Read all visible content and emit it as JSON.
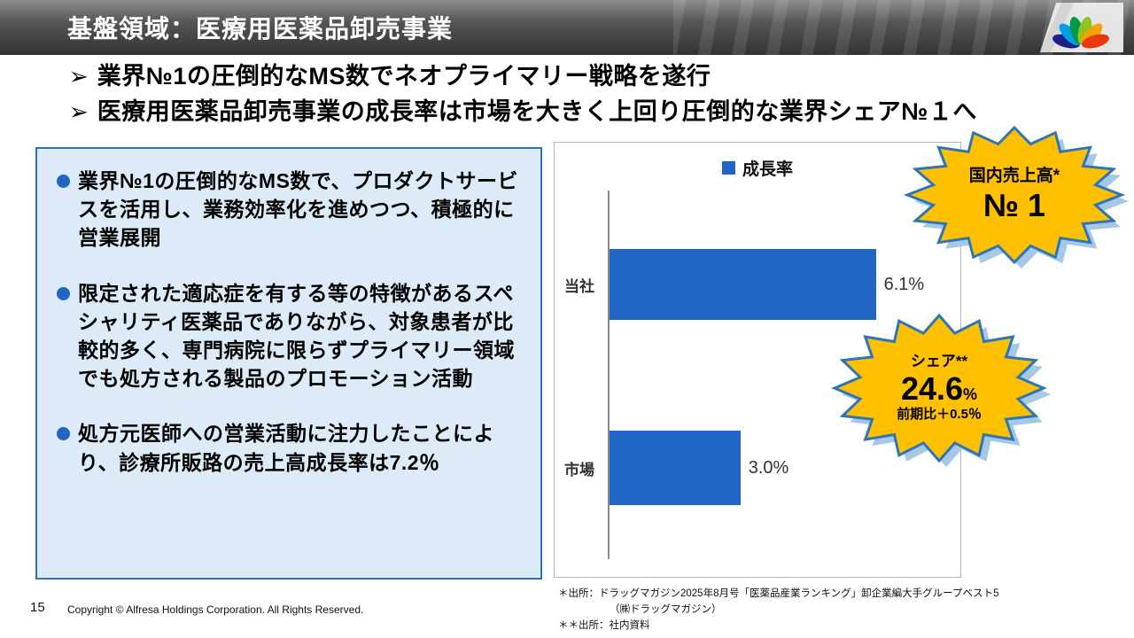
{
  "header": {
    "title": "基盤領域：医療用医薬品卸売事業"
  },
  "key_points": {
    "marker": "➢",
    "items": [
      "業界№1の圧倒的なMS数でネオプライマリー戦略を遂行",
      "医療用医薬品卸売事業の成長率は市場を大きく上回り圧倒的な業界シェア№１へ"
    ]
  },
  "panel": {
    "items": [
      "業界№1の圧倒的なMS数で、プロダクトサービスを活用し、業務効率化を進めつつ、積極的に営業展開",
      "限定された適応症を有する等の特徴があるスペシャリティ医薬品でありながら、対象患者が比較的多く、専門病院に限らずプライマリー領域でも処方される製品のプロモーション活動",
      "処方元医師への営業活動に注力したことにより、診療所販路の売上高成長率は7.2％"
    ]
  },
  "chart_data": {
    "type": "bar",
    "orientation": "horizontal",
    "title": "",
    "legend": [
      "成長率"
    ],
    "legend_position": "top-center",
    "categories": [
      "当社",
      "市場"
    ],
    "values": [
      6.1,
      3.0
    ],
    "value_labels": [
      "6.1%",
      "3.0%"
    ],
    "xlim": [
      0,
      8
    ],
    "grid": false,
    "bar_color": "#2166C4"
  },
  "badges": {
    "no1": {
      "top": "国内売上高*",
      "bottom": "№ 1"
    },
    "share": {
      "top": "シェア**",
      "value": "24.6",
      "unit": "%",
      "sub": "前期比＋0.5％"
    }
  },
  "footer": {
    "page_number": "15",
    "copyright": "Copyright © Alfresa Holdings Corporation. All Rights Reserved.",
    "footnotes": [
      "＊出所：ドラッグマガジン2025年8月号「医薬品産業ランキング」卸企業編大手グループベスト5",
      "（㈱ドラッグマガジン）",
      "＊＊出所：社内資料"
    ]
  },
  "colors": {
    "accent_blue": "#2E75B6",
    "bar_blue": "#2166C4",
    "panel_bg": "#DCEBF7",
    "badge_gold": "#FFC000",
    "badge_shadow": "#A7C7E7",
    "header_gray": "#4a4a4a"
  }
}
